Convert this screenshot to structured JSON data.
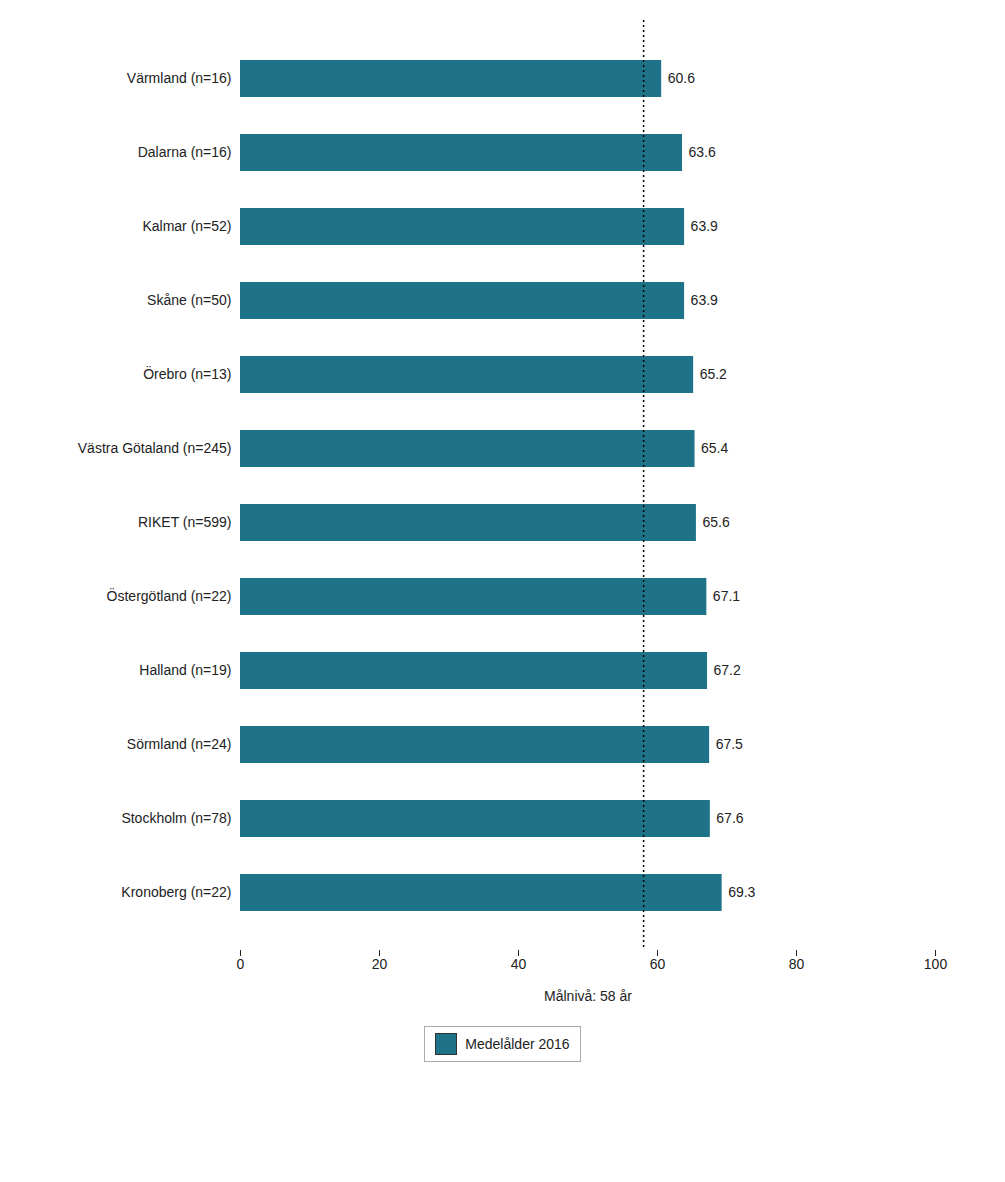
{
  "chart_data": {
    "type": "bar",
    "orientation": "horizontal",
    "categories": [
      "Kronoberg (n=22)",
      "Stockholm (n=78)",
      "Sörmland (n=24)",
      "Halland (n=19)",
      "Östergötland (n=22)",
      "RIKET (n=599)",
      "Västra Götaland (n=245)",
      "Örebro (n=13)",
      "Skåne (n=50)",
      "Kalmar (n=52)",
      "Dalarna (n=16)",
      "Värmland (n=16)"
    ],
    "series": [
      {
        "name": "Medelålder 2016",
        "color": "#1f7388",
        "values": [
          69.3,
          67.6,
          67.5,
          67.2,
          67.1,
          65.6,
          65.4,
          65.2,
          63.9,
          63.9,
          63.6,
          60.6
        ]
      }
    ],
    "target_line": 58,
    "xlabel": "Målnivå: 58 år",
    "xlim": [
      0,
      100
    ],
    "xticks": [
      0,
      20,
      40,
      60,
      80,
      100
    ],
    "data_labels": true,
    "grid": false,
    "legend": "bottom"
  }
}
